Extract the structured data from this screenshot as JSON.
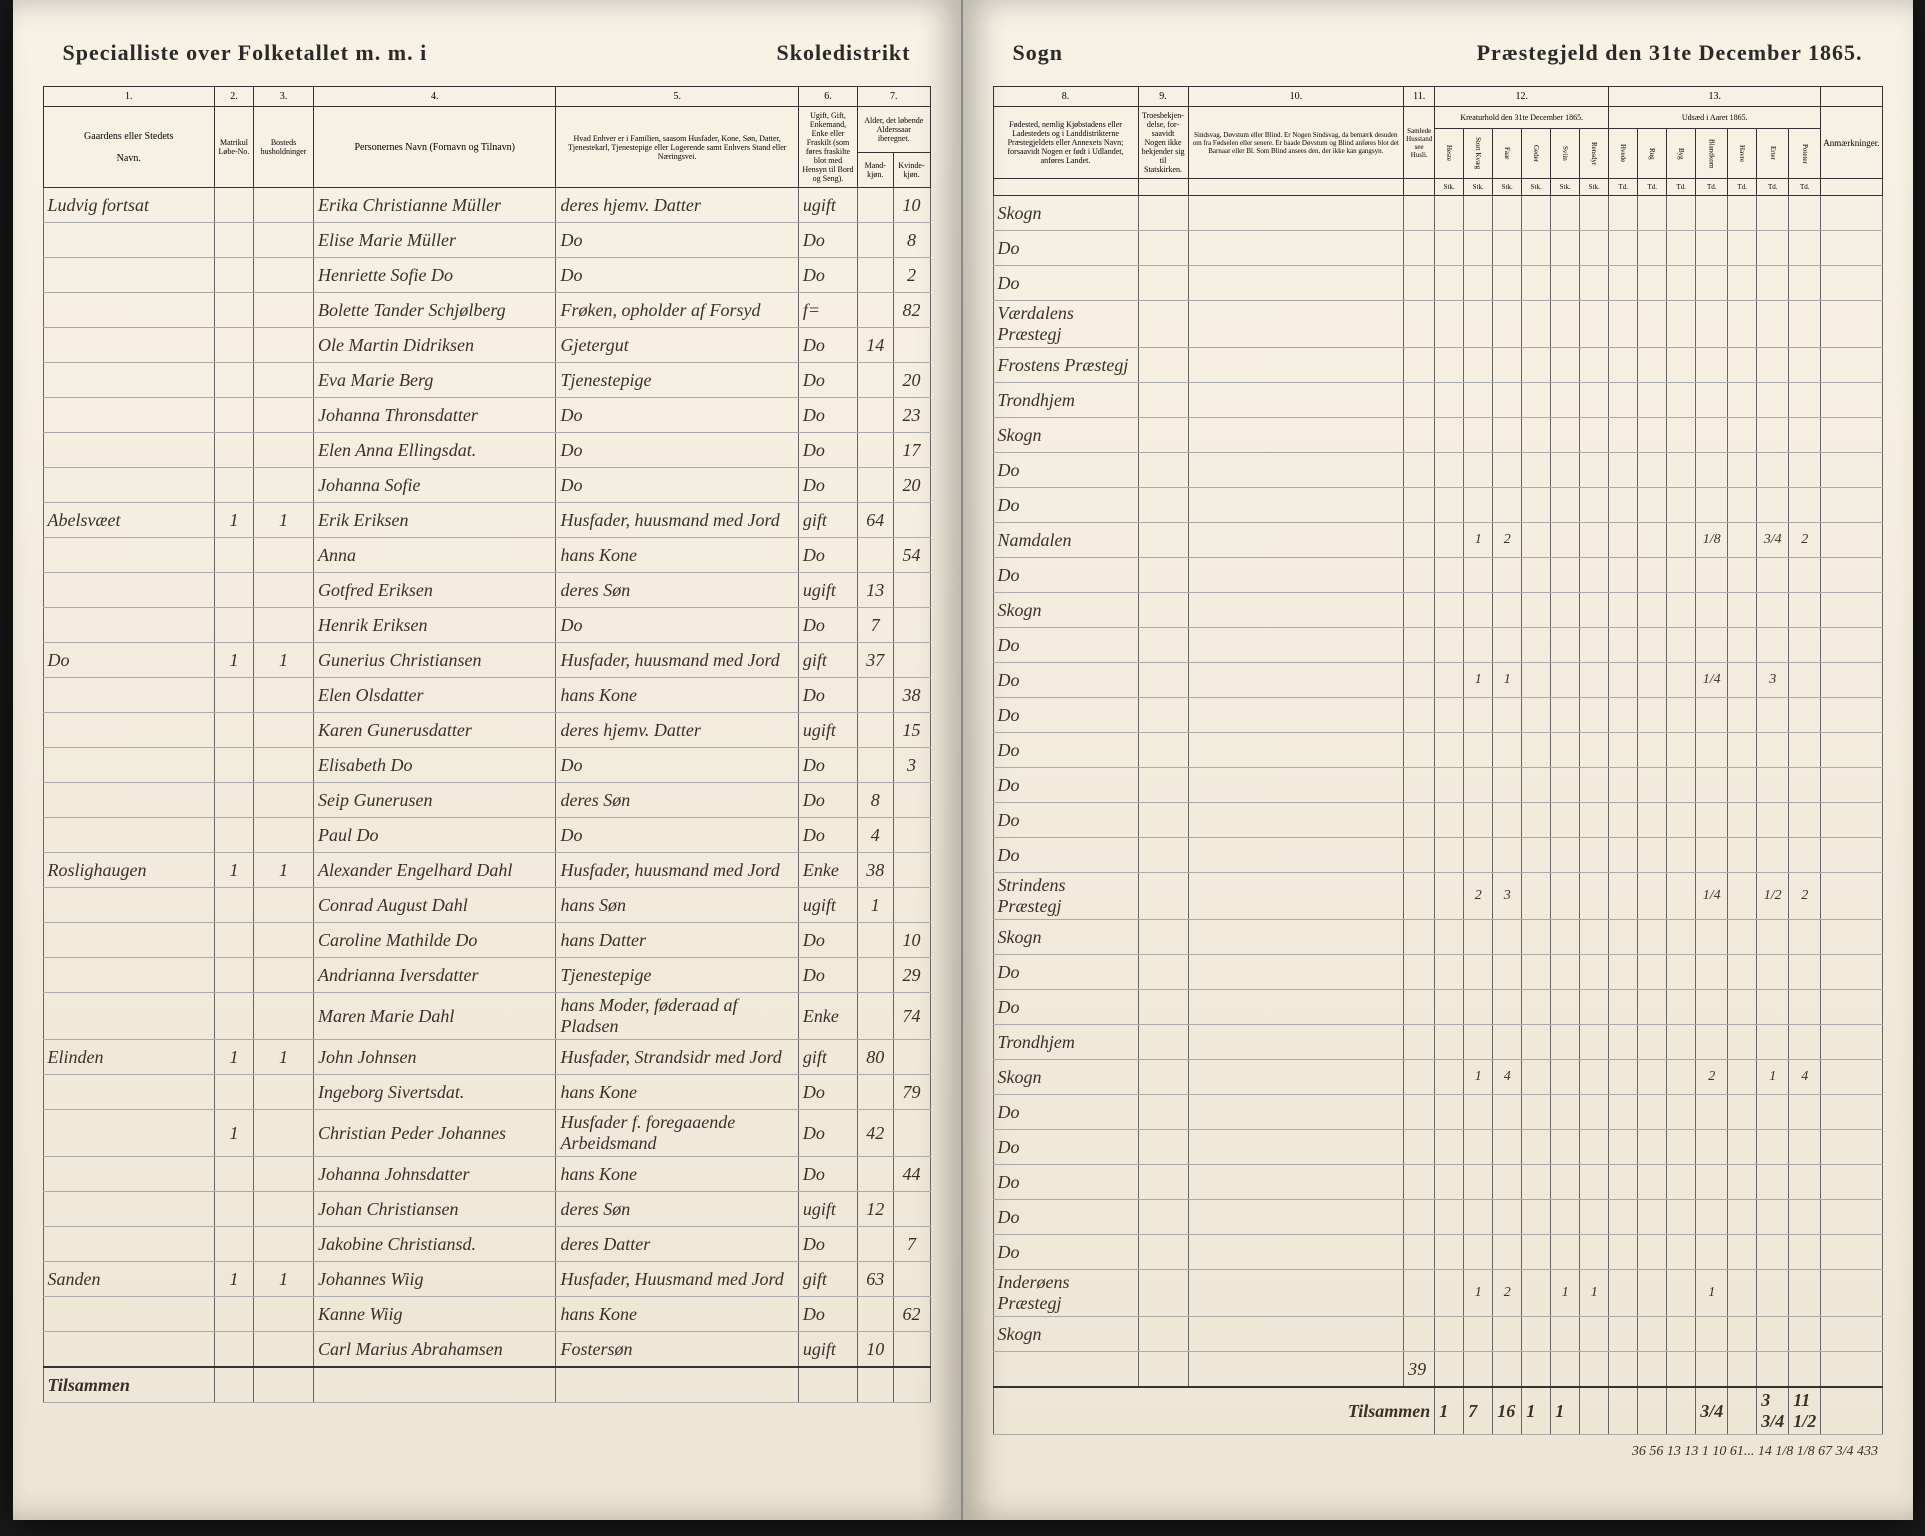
{
  "left": {
    "header1": "Specialliste over Folketallet m. m. i",
    "header2": "Skoledistrikt",
    "columns": {
      "c1": "1.",
      "c2": "2.",
      "c3": "3.",
      "c4": "4.",
      "c5": "5.",
      "c6": "6.",
      "c7": "7.",
      "c1_label": "Gaardens eller Stedets",
      "c1_sub": "Navn.",
      "c2_label": "Matrikul Løbe-No.",
      "c3_label": "Bosteds husholdninger",
      "c4_label": "Personernes Navn (Fornavn og Tilnavn)",
      "c5_label": "Hvad Enhver er i Familien, saasom Husfader, Kone, Søn, Datter, Tjenestekarl, Tjenestepige eller Logerende samt Enhvers Stand eller Næringsvei.",
      "c6_label": "Ugift, Gift, Enkemand, Enke eller Fraskilt (som føres fraskilte blot med Hensyn til Bord og Seng).",
      "c7_label": "Alder, det løbende Alderssaar iberegnet.",
      "c7_m": "Mand-kjøn.",
      "c7_k": "Kvinde-kjøn."
    },
    "rows": [
      {
        "place": "Ludvig fortsat",
        "m": "",
        "h": "",
        "name": "Erika Christianne Müller",
        "rel": "deres hjemv. Datter",
        "stat": "ugift",
        "age_m": "",
        "age_k": "10",
        "birthplace": "Skogn"
      },
      {
        "place": "",
        "m": "",
        "h": "",
        "name": "Elise Marie Müller",
        "rel": "Do",
        "stat": "Do",
        "age_m": "",
        "age_k": "8",
        "birthplace": "Do"
      },
      {
        "place": "",
        "m": "",
        "h": "",
        "name": "Henriette Sofie Do",
        "rel": "Do",
        "stat": "Do",
        "age_m": "",
        "age_k": "2",
        "birthplace": "Do"
      },
      {
        "place": "",
        "m": "",
        "h": "",
        "name": "Bolette Tander Schjølberg",
        "rel": "Frøken, opholder af Forsyd",
        "stat": "f=",
        "age_m": "",
        "age_k": "82",
        "birthplace": "Værdalens Præstegj"
      },
      {
        "place": "",
        "m": "",
        "h": "",
        "name": "Ole Martin Didriksen",
        "rel": "Gjetergut",
        "stat": "Do",
        "age_m": "14",
        "age_k": "",
        "birthplace": "Frostens Præstegj"
      },
      {
        "place": "",
        "m": "",
        "h": "",
        "name": "Eva Marie Berg",
        "rel": "Tjenestepige",
        "stat": "Do",
        "age_m": "",
        "age_k": "20",
        "birthplace": "Trondhjem"
      },
      {
        "place": "",
        "m": "",
        "h": "",
        "name": "Johanna Thronsdatter",
        "rel": "Do",
        "stat": "Do",
        "age_m": "",
        "age_k": "23",
        "birthplace": "Skogn"
      },
      {
        "place": "",
        "m": "",
        "h": "",
        "name": "Elen Anna Ellingsdat.",
        "rel": "Do",
        "stat": "Do",
        "age_m": "",
        "age_k": "17",
        "birthplace": "Do"
      },
      {
        "place": "",
        "m": "",
        "h": "",
        "name": "Johanna Sofie",
        "rel": "Do",
        "stat": "Do",
        "age_m": "",
        "age_k": "20",
        "birthplace": "Do"
      },
      {
        "place": "Abelsvæet",
        "m": "1",
        "h": "1",
        "name": "Erik Eriksen",
        "rel": "Husfader, huusmand med Jord",
        "stat": "gift",
        "age_m": "64",
        "age_k": "",
        "birthplace": "Namdalen"
      },
      {
        "place": "",
        "m": "",
        "h": "",
        "name": "Anna",
        "rel": "hans Kone",
        "stat": "Do",
        "age_m": "",
        "age_k": "54",
        "birthplace": "Do"
      },
      {
        "place": "",
        "m": "",
        "h": "",
        "name": "Gotfred Eriksen",
        "rel": "deres Søn",
        "stat": "ugift",
        "age_m": "13",
        "age_k": "",
        "birthplace": "Skogn"
      },
      {
        "place": "",
        "m": "",
        "h": "",
        "name": "Henrik Eriksen",
        "rel": "Do",
        "stat": "Do",
        "age_m": "7",
        "age_k": "",
        "birthplace": "Do"
      },
      {
        "place": "Do",
        "m": "1",
        "h": "1",
        "name": "Gunerius Christiansen",
        "rel": "Husfader, huusmand med Jord",
        "stat": "gift",
        "age_m": "37",
        "age_k": "",
        "birthplace": "Do"
      },
      {
        "place": "",
        "m": "",
        "h": "",
        "name": "Elen Olsdatter",
        "rel": "hans Kone",
        "stat": "Do",
        "age_m": "",
        "age_k": "38",
        "birthplace": "Do"
      },
      {
        "place": "",
        "m": "",
        "h": "",
        "name": "Karen Gunerusdatter",
        "rel": "deres hjemv. Datter",
        "stat": "ugift",
        "age_m": "",
        "age_k": "15",
        "birthplace": "Do"
      },
      {
        "place": "",
        "m": "",
        "h": "",
        "name": "Elisabeth Do",
        "rel": "Do",
        "stat": "Do",
        "age_m": "",
        "age_k": "3",
        "birthplace": "Do"
      },
      {
        "place": "",
        "m": "",
        "h": "",
        "name": "Seip Gunerusen",
        "rel": "deres Søn",
        "stat": "Do",
        "age_m": "8",
        "age_k": "",
        "birthplace": "Do"
      },
      {
        "place": "",
        "m": "",
        "h": "",
        "name": "Paul Do",
        "rel": "Do",
        "stat": "Do",
        "age_m": "4",
        "age_k": "",
        "birthplace": "Do"
      },
      {
        "place": "Roslighaugen",
        "m": "1",
        "h": "1",
        "name": "Alexander Engelhard Dahl",
        "rel": "Husfader, huusmand med Jord",
        "stat": "Enke",
        "age_m": "38",
        "age_k": "",
        "birthplace": "Strindens Præstegj"
      },
      {
        "place": "",
        "m": "",
        "h": "",
        "name": "Conrad August Dahl",
        "rel": "hans Søn",
        "stat": "ugift",
        "age_m": "1",
        "age_k": "",
        "birthplace": "Skogn"
      },
      {
        "place": "",
        "m": "",
        "h": "",
        "name": "Caroline Mathilde Do",
        "rel": "hans Datter",
        "stat": "Do",
        "age_m": "",
        "age_k": "10",
        "birthplace": "Do"
      },
      {
        "place": "",
        "m": "",
        "h": "",
        "name": "Andrianna Iversdatter",
        "rel": "Tjenestepige",
        "stat": "Do",
        "age_m": "",
        "age_k": "29",
        "birthplace": "Do"
      },
      {
        "place": "",
        "m": "",
        "h": "",
        "name": "Maren Marie Dahl",
        "rel": "hans Moder, føderaad af Pladsen",
        "stat": "Enke",
        "age_m": "",
        "age_k": "74",
        "birthplace": "Trondhjem"
      },
      {
        "place": "Elinden",
        "m": "1",
        "h": "1",
        "name": "John Johnsen",
        "rel": "Husfader, Strandsidr med Jord",
        "stat": "gift",
        "age_m": "80",
        "age_k": "",
        "birthplace": "Skogn"
      },
      {
        "place": "",
        "m": "",
        "h": "",
        "name": "Ingeborg Sivertsdat.",
        "rel": "hans Kone",
        "stat": "Do",
        "age_m": "",
        "age_k": "79",
        "birthplace": "Do"
      },
      {
        "place": "",
        "m": "1",
        "h": "",
        "name": "Christian Peder Johannes",
        "rel": "Husfader f. foregaaende Arbeidsmand",
        "stat": "Do",
        "age_m": "42",
        "age_k": "",
        "birthplace": "Do"
      },
      {
        "place": "",
        "m": "",
        "h": "",
        "name": "Johanna Johnsdatter",
        "rel": "hans Kone",
        "stat": "Do",
        "age_m": "",
        "age_k": "44",
        "birthplace": "Do"
      },
      {
        "place": "",
        "m": "",
        "h": "",
        "name": "Johan Christiansen",
        "rel": "deres Søn",
        "stat": "ugift",
        "age_m": "12",
        "age_k": "",
        "birthplace": "Do"
      },
      {
        "place": "",
        "m": "",
        "h": "",
        "name": "Jakobine Christiansd.",
        "rel": "deres Datter",
        "stat": "Do",
        "age_m": "",
        "age_k": "7",
        "birthplace": "Do"
      },
      {
        "place": "Sanden",
        "m": "1",
        "h": "1",
        "name": "Johannes Wiig",
        "rel": "Husfader, Huusmand med Jord",
        "stat": "gift",
        "age_m": "63",
        "age_k": "",
        "birthplace": "Inderøens Præstegj"
      },
      {
        "place": "",
        "m": "",
        "h": "",
        "name": "Kanne Wiig",
        "rel": "hans Kone",
        "stat": "Do",
        "age_m": "",
        "age_k": "62",
        "birthplace": "Skogn"
      },
      {
        "place": "",
        "m": "",
        "h": "",
        "name": "Carl Marius Abrahamsen",
        "rel": "Fostersøn",
        "stat": "ugift",
        "age_m": "10",
        "age_k": "",
        "birthplace": ""
      }
    ],
    "footer": "Tilsammen"
  },
  "right": {
    "header1": "Sogn",
    "header2": "Præstegjeld den 31te December 1865.",
    "columns": {
      "c8": "8.",
      "c9": "9.",
      "c10": "10.",
      "c11": "11.",
      "c12": "12.",
      "c13": "13.",
      "c8_label": "Fødested, nemlig Kjøbstadens eller Ladestedets og i Landdistrikterne Præstegjeldets eller Annexets Navn; forsaavidt Nogen er født i Udlandet, anføres Landet.",
      "c9_label": "Troesbekjen-delse, for-saavidt Nogen ikke bekjender sig til Statskirken.",
      "c10_label": "Sindsvag, Døvstum eller Blind. Er Nogen Sindsvag, da bemærk desuden om fra Fødselen eller senere. Er baade Døvstum og Blind anføres blot det Barnaar eller Bl. Som Blind ansees den, der ikke kan gangsyn.",
      "c11_label": "Samlede Husstand see Husli.",
      "c12_label": "Kreaturhold den 31te December 1865.",
      "c13_label": "Udsæd i Aaret 1865.",
      "c12_heste": "Heste",
      "c12_stort": "Stort Kvæg",
      "c12_faar": "Faar",
      "c12_geder": "Geder",
      "c12_svin": "Sviin",
      "c12_rensdyr": "Rensdyr",
      "c13_hvede": "Hvede",
      "c13_rug": "Rug",
      "c13_byg": "Byg",
      "c13_bland": "Blandkorn",
      "c13_havre": "Havre",
      "c13_erter": "Erter",
      "c13_poteter": "Poteter",
      "anm": "Anmærkninger.",
      "unit": "Stk.",
      "unit2": "Td."
    },
    "livestock_rows": [
      {
        "idx": 9,
        "h": "",
        "sk": "1",
        "f": "2",
        "g": "",
        "sv": "",
        "r": "",
        "hv": "",
        "ru": "",
        "by": "",
        "bl": "1/8",
        "ha": "",
        "er": "3/4",
        "po": "2"
      },
      {
        "idx": 13,
        "h": "",
        "sk": "1",
        "f": "1",
        "g": "",
        "sv": "",
        "r": "",
        "hv": "",
        "ru": "",
        "by": "",
        "bl": "1/4",
        "ha": "",
        "er": "3",
        "po": ""
      },
      {
        "idx": 19,
        "h": "",
        "sk": "2",
        "f": "3",
        "g": "",
        "sv": "",
        "r": "",
        "hv": "",
        "ru": "",
        "by": "",
        "bl": "1/4",
        "ha": "",
        "er": "1/2",
        "po": "2"
      },
      {
        "idx": 24,
        "h": "",
        "sk": "1",
        "f": "4",
        "g": "",
        "sv": "",
        "r": "",
        "hv": "",
        "ru": "",
        "by": "",
        "bl": "2",
        "ha": "",
        "er": "1",
        "po": "4"
      },
      {
        "idx": 30,
        "h": "",
        "sk": "1",
        "f": "2",
        "g": "",
        "sv": "1",
        "r": "1",
        "hv": "",
        "ru": "",
        "by": "",
        "bl": "1",
        "ha": "",
        "er": "",
        "po": ""
      }
    ],
    "note_row_idx": 32,
    "note_value": "39",
    "footer": "Tilsammen",
    "totals": [
      "1",
      "7",
      "16",
      "1",
      "1",
      "",
      "",
      "",
      "",
      "3/4",
      "",
      "3 3/4",
      "11 1/2"
    ],
    "grand_totals": "36 56 13 13 1 10 61... 14 1/8 1/8 67 3/4 433"
  }
}
